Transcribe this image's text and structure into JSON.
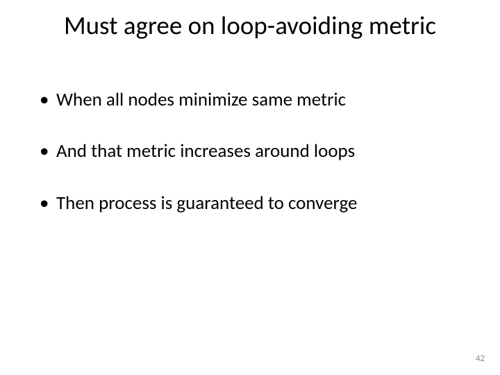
{
  "slide": {
    "title": "Must agree on loop-avoiding metric",
    "bullets": [
      "When all nodes minimize same metric",
      "And that metric increases around loops",
      "Then process is guaranteed to converge"
    ],
    "page_number": "42"
  },
  "style": {
    "background_color": "#ffffff",
    "text_color": "#000000",
    "title_fontsize": 37,
    "bullet_fontsize": 27,
    "pagenum_fontsize": 13,
    "pagenum_color": "#8a8a8a",
    "font_family": "Calibri"
  }
}
